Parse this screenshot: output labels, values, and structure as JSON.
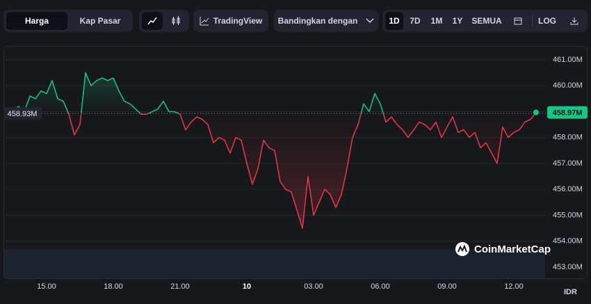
{
  "toolbar": {
    "view_tabs": [
      "Harga",
      "Kap Pasar"
    ],
    "tradingview": "TradingView",
    "compare": "Bandingkan dengan",
    "ranges": [
      "1D",
      "7D",
      "1M",
      "1Y",
      "SEMUA"
    ],
    "log": "LOG"
  },
  "chart_data": {
    "type": "line",
    "categories": [
      null,
      null,
      null,
      null,
      null,
      null,
      null,
      "15.00",
      null,
      null,
      null,
      null,
      null,
      null,
      null,
      null,
      null,
      null,
      null,
      "18.00",
      null,
      null,
      null,
      null,
      null,
      null,
      null,
      null,
      null,
      null,
      null,
      "21.00",
      null,
      null,
      null,
      null,
      null,
      null,
      null,
      null,
      null,
      null,
      null,
      "10",
      null,
      null,
      null,
      null,
      null,
      null,
      null,
      null,
      null,
      null,
      null,
      "03.00",
      null,
      null,
      null,
      null,
      null,
      null,
      null,
      null,
      null,
      null,
      null,
      "06.00",
      null,
      null,
      null,
      null,
      null,
      null,
      null,
      null,
      null,
      null,
      null,
      "09.00",
      null,
      null,
      null,
      null,
      null,
      null,
      null,
      null,
      null,
      null,
      null,
      "12.00",
      null,
      null,
      null,
      null
    ],
    "series": [
      {
        "name": "Harga",
        "values": [
          459.0,
          459.1,
          459.2,
          459.0,
          459.6,
          459.5,
          459.8,
          459.7,
          460.2,
          459.5,
          459.4,
          458.9,
          458.1,
          458.5,
          460.5,
          460.0,
          460.2,
          460.3,
          460.2,
          460.3,
          459.8,
          459.4,
          459.3,
          459.1,
          458.9,
          458.9,
          459.0,
          459.1,
          459.4,
          459.0,
          459.0,
          458.9,
          458.3,
          458.6,
          458.8,
          458.7,
          458.5,
          457.8,
          458.0,
          457.9,
          457.4,
          458.0,
          457.9,
          457.0,
          456.2,
          456.8,
          457.9,
          457.6,
          457.5,
          456.3,
          456.0,
          455.9,
          455.2,
          454.5,
          456.5,
          455.0,
          455.5,
          456.0,
          455.8,
          455.3,
          455.8,
          456.8,
          458.0,
          458.5,
          459.3,
          459.0,
          459.7,
          459.3,
          458.6,
          458.8,
          458.5,
          458.3,
          458.0,
          458.3,
          458.6,
          458.5,
          458.3,
          458.6,
          458.0,
          458.4,
          458.8,
          458.2,
          458.3,
          458.0,
          458.2,
          457.6,
          457.8,
          457.4,
          457.0,
          458.4,
          458.0,
          458.2,
          458.3,
          458.6,
          458.7,
          458.97
        ]
      }
    ],
    "up_color": "#16c784",
    "down_color": "#ea3943",
    "baseline": {
      "value": 458.93,
      "label": "458.93M"
    },
    "current_label": "458.97M",
    "ylim": [
      452.57,
      461.51
    ],
    "yticks": [
      {
        "value": 453,
        "label": "453.00M"
      },
      {
        "value": 454,
        "label": "454.00M"
      },
      {
        "value": 455,
        "label": "455.00M"
      },
      {
        "value": 456,
        "label": "456.00M"
      },
      {
        "value": 457,
        "label": "457.00M"
      },
      {
        "value": 458,
        "label": "458.00M"
      },
      {
        "value": 459,
        "label": "459.00M"
      },
      {
        "value": 460,
        "label": "460.00M"
      },
      {
        "value": 461,
        "label": "461.00M"
      }
    ],
    "grid": true,
    "x_label": "IDR",
    "watermark": "CoinMarketCap"
  }
}
